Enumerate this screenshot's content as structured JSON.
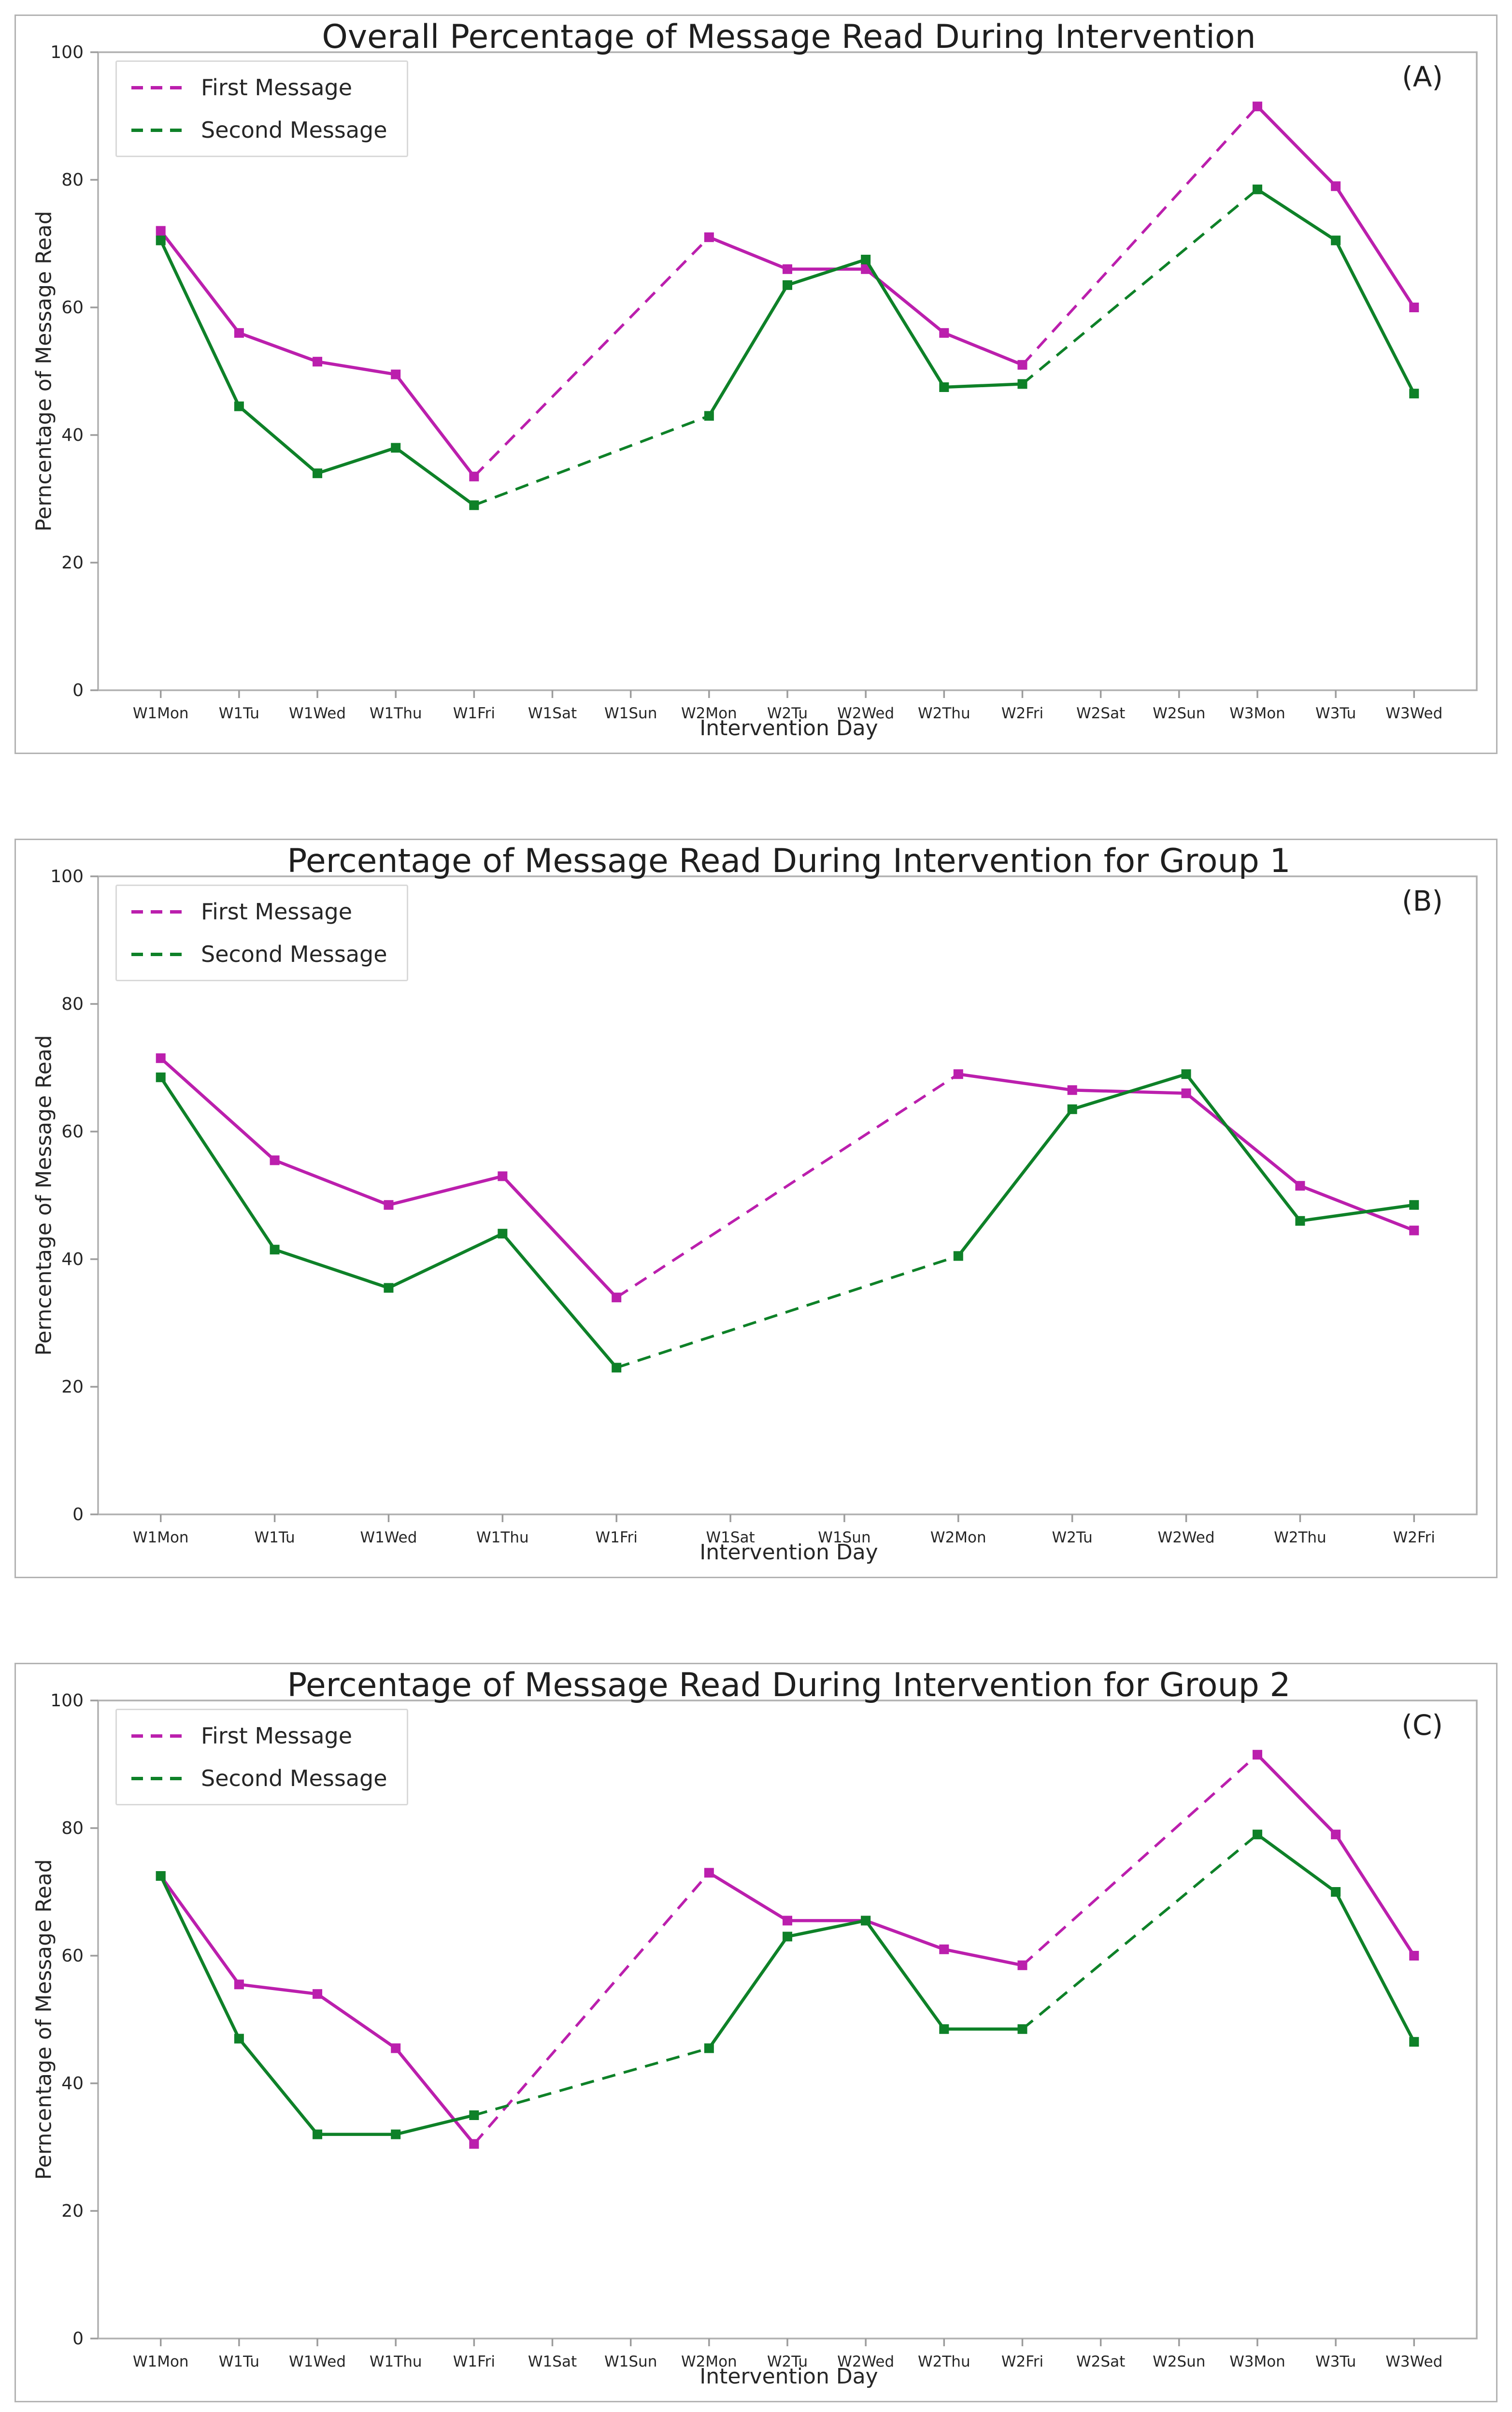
{
  "shared": {
    "xlabel": "Intervention Day",
    "ylabel": "Perncentage of Message Read",
    "yticks": [
      0,
      20,
      40,
      60,
      80,
      100
    ],
    "ylim": [
      0,
      100
    ],
    "colors": {
      "first_message": "#BB1FAD",
      "second_message": "#0E8128",
      "axis": "#9c9c9c",
      "box_border": "#b0b0b0",
      "text": "#262626"
    },
    "legend_position": "upper left",
    "grid": "off"
  },
  "chart_data": [
    {
      "type": "line",
      "title": "Overall Percentage of Message Read During Intervention",
      "corner_label": "(A)",
      "xlabel": "Intervention Day",
      "ylabel": "Perncentage of Message Read",
      "ylim": [
        0,
        100
      ],
      "yticks": [
        0,
        20,
        40,
        60,
        80,
        100
      ],
      "categories": [
        "W1Mon",
        "W1Tu",
        "W1Wed",
        "W1Thu",
        "W1Fri",
        "W1Sat",
        "W1Sun",
        "W2Mon",
        "W2Tu",
        "W2Wed",
        "W2Thu",
        "W2Fri",
        "W2Sat",
        "W2Sun",
        "W3Mon",
        "W3Tu",
        "W3Wed"
      ],
      "series": [
        {
          "name": "First Message",
          "color": "#BB1FAD",
          "marker": "square",
          "values": [
            72,
            56,
            51.5,
            49.5,
            33.5,
            null,
            null,
            71,
            66,
            66,
            56,
            51,
            null,
            null,
            91.5,
            79,
            60
          ]
        },
        {
          "name": "Second Message",
          "color": "#0E8128",
          "marker": "square",
          "values": [
            70.5,
            44.5,
            34,
            38,
            29,
            null,
            null,
            43,
            63.5,
            67.5,
            47.5,
            48,
            null,
            null,
            78.5,
            70.5,
            46.5
          ]
        }
      ]
    },
    {
      "type": "line",
      "title": "Percentage of Message Read During Intervention for Group 1",
      "corner_label": "(B)",
      "xlabel": "Intervention Day",
      "ylabel": "Perncentage of Message Read",
      "ylim": [
        0,
        100
      ],
      "yticks": [
        0,
        20,
        40,
        60,
        80,
        100
      ],
      "categories": [
        "W1Mon",
        "W1Tu",
        "W1Wed",
        "W1Thu",
        "W1Fri",
        "W1Sat",
        "W1Sun",
        "W2Mon",
        "W2Tu",
        "W2Wed",
        "W2Thu",
        "W2Fri"
      ],
      "series": [
        {
          "name": "First Message",
          "color": "#BB1FAD",
          "marker": "square",
          "values": [
            71.5,
            55.5,
            48.5,
            53,
            34,
            null,
            null,
            69,
            66.5,
            66,
            51.5,
            44.5
          ]
        },
        {
          "name": "Second Message",
          "color": "#0E8128",
          "marker": "square",
          "values": [
            68.5,
            41.5,
            35.5,
            44,
            23,
            null,
            null,
            40.5,
            63.5,
            69,
            46,
            48.5
          ]
        }
      ]
    },
    {
      "type": "line",
      "title": "Percentage of Message Read During Intervention for Group 2",
      "corner_label": "(C)",
      "xlabel": "Intervention Day",
      "ylabel": "Perncentage of Message Read",
      "ylim": [
        0,
        100
      ],
      "yticks": [
        0,
        20,
        40,
        60,
        80,
        100
      ],
      "categories": [
        "W1Mon",
        "W1Tu",
        "W1Wed",
        "W1Thu",
        "W1Fri",
        "W1Sat",
        "W1Sun",
        "W2Mon",
        "W2Tu",
        "W2Wed",
        "W2Thu",
        "W2Fri",
        "W2Sat",
        "W2Sun",
        "W3Mon",
        "W3Tu",
        "W3Wed"
      ],
      "series": [
        {
          "name": "First Message",
          "color": "#BB1FAD",
          "marker": "square",
          "values": [
            72.5,
            55.5,
            54,
            45.5,
            30.5,
            null,
            null,
            73,
            65.5,
            65.5,
            61,
            58.5,
            null,
            null,
            91.5,
            79,
            60
          ]
        },
        {
          "name": "Second Message",
          "color": "#0E8128",
          "marker": "square",
          "values": [
            72.5,
            47,
            32,
            32,
            35,
            null,
            null,
            45.5,
            63,
            65.5,
            48.5,
            48.5,
            null,
            null,
            79,
            70,
            46.5
          ]
        }
      ]
    }
  ]
}
